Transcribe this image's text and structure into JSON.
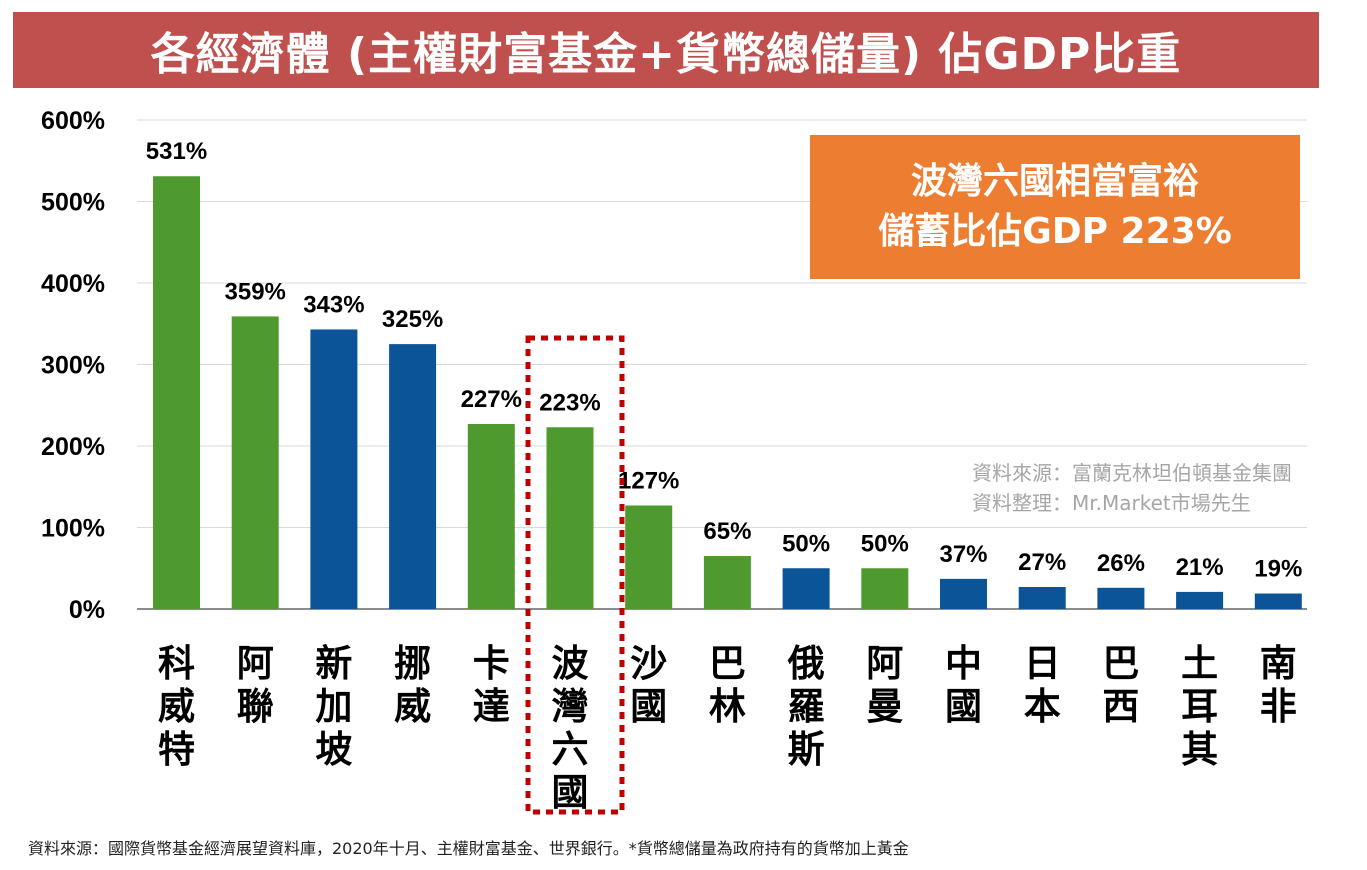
{
  "title": "各經濟體 (主權財富基金+貨幣總儲量) 佔GDP比重",
  "callout": {
    "line1": "波灣六國相當富裕",
    "line2": "儲蓄比佔GDP 223%"
  },
  "source_note": {
    "line1": "資料來源：富蘭克林坦伯頓基金集團",
    "line2": "資料整理：Mr.Market市場先生"
  },
  "footnote": "資料來源：國際貨幣基金經濟展望資料庫，2020年十月、主權財富基金、世界銀行。*貨幣總儲量為政府持有的貨幣加上黃金",
  "colors": {
    "title_bg": "#c0504d",
    "green": "#4e9a2f",
    "blue": "#0a5497",
    "callout_bg": "#ed7d31",
    "highlight_box": "#c00000"
  },
  "chart_data": {
    "type": "bar",
    "title": "各經濟體 (主權財富基金+貨幣總儲量) 佔GDP比重",
    "categories": [
      "科威特",
      "阿聯",
      "新加坡",
      "挪威",
      "卡達",
      "波灣六國",
      "沙國",
      "巴林",
      "俄羅斯",
      "阿曼",
      "中國",
      "日本",
      "巴西",
      "土耳其",
      "南非"
    ],
    "values": [
      531,
      359,
      343,
      325,
      227,
      223,
      127,
      65,
      50,
      50,
      37,
      27,
      26,
      21,
      19
    ],
    "value_labels": [
      "531%",
      "359%",
      "343%",
      "325%",
      "227%",
      "223%",
      "127%",
      "65%",
      "50%",
      "50%",
      "37%",
      "27%",
      "26%",
      "21%",
      "19%"
    ],
    "bar_colors": [
      "green",
      "green",
      "blue",
      "blue",
      "green",
      "green",
      "green",
      "green",
      "blue",
      "green",
      "blue",
      "blue",
      "blue",
      "blue",
      "blue"
    ],
    "unit": "%",
    "ylim": [
      0,
      600
    ],
    "yticks": [
      0,
      100,
      200,
      300,
      400,
      500,
      600
    ],
    "ytick_labels": [
      "0%",
      "100%",
      "200%",
      "300%",
      "400%",
      "500%",
      "600%"
    ],
    "grid": true,
    "highlighted_category": "波灣六國",
    "xlabel": "",
    "ylabel": ""
  }
}
